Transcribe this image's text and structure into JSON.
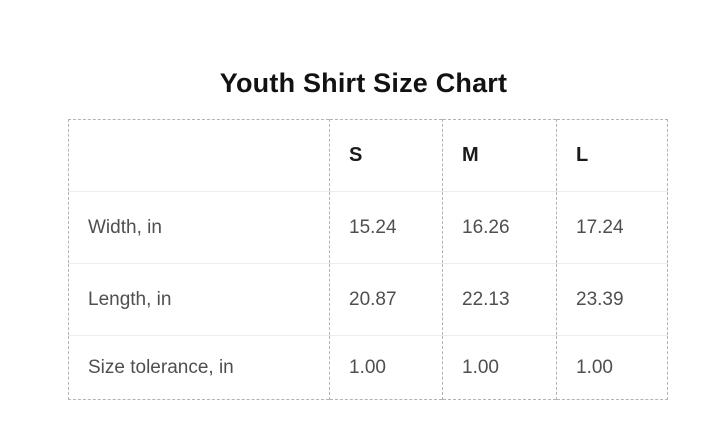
{
  "title": "Youth Shirt Size Chart",
  "chart_data": {
    "type": "table",
    "title": "Youth Shirt Size Chart",
    "columns": [
      "",
      "S",
      "M",
      "L"
    ],
    "rows": [
      [
        "Width, in",
        15.24,
        16.26,
        17.24
      ],
      [
        "Length, in",
        20.87,
        22.13,
        23.39
      ],
      [
        "Size tolerance, in",
        1.0,
        1.0,
        1.0
      ]
    ],
    "units": "inches",
    "layout": {
      "grid": "dashed-outer-and-column-borders",
      "row_separators": "light-solid"
    }
  },
  "table": {
    "columns": [
      "",
      "S",
      "M",
      "L"
    ],
    "rows": [
      {
        "label": "Width, in",
        "values": [
          "15.24",
          "16.26",
          "17.24"
        ]
      },
      {
        "label": "Length, in",
        "values": [
          "20.87",
          "22.13",
          "23.39"
        ]
      },
      {
        "label": "Size tolerance, in",
        "values": [
          "1.00",
          "1.00",
          "1.00"
        ]
      }
    ]
  },
  "colors": {
    "background": "#ffffff",
    "title_text": "#121212",
    "header_text": "#1a1a1a",
    "body_text": "#4f4f4f",
    "dashed_border": "#b3b3b3",
    "row_separator": "#ededed"
  }
}
